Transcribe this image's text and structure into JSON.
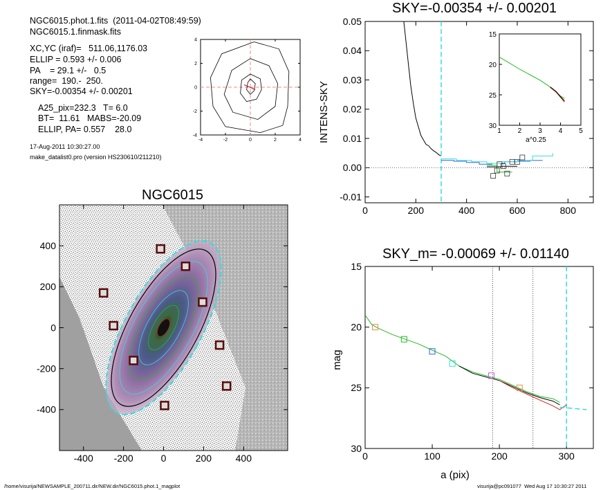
{
  "header": {
    "file_line": "NGC6015.phot.1.fits  (2011-04-02T08:49:59)",
    "mask_line": "NGC6015.1.finmask.fits",
    "lines": [
      "XC,YC (iraf)=   511.06,1176.03",
      "ELLIP = 0.593 +/- 0.006",
      "PA    = 29.1 +/-   0.5",
      "range=  190.-  250.",
      "SKY=-0.00354 +/- 0.00201"
    ],
    "params": [
      "A25_pix=232.3   T= 6.0",
      "BT=  11.61   MABS=-20.09",
      "ELLIP, PA= 0.557    28.0"
    ],
    "date_line": "17-Aug-2011 10:30:27.00",
    "program_line": "make_datalist0.pro (version HS230610/211210)"
  },
  "footer": {
    "left": "/home/visurija/NEWSAMPLE_200711.dir/NEW.dir/NGC6015.phot.1_magplot",
    "right": "visurija@pc091077  Wed Aug 17 10:30:27 2011"
  },
  "colors": {
    "black": "#000000",
    "green": "#22bb22",
    "red": "#cc2222",
    "blue": "#3366dd",
    "cyan": "#33dddd",
    "magenta": "#cc55cc",
    "orange": "#ee8844",
    "gray_bg": "#a0a0a0"
  },
  "chart_data": [
    {
      "id": "centroid_plot",
      "type": "line",
      "title": "",
      "xlim": [
        -4,
        4
      ],
      "ylim": [
        -4,
        4
      ],
      "x_ticks": [
        "-4",
        "-2",
        "0",
        "2",
        "4"
      ],
      "y_ticks": [
        "-4",
        "-2",
        "0",
        "2",
        "4"
      ],
      "contours": [
        [
          [
            0,
            0.7
          ],
          [
            0.4,
            0.3
          ],
          [
            0.3,
            -0.3
          ],
          [
            0,
            -0.6
          ],
          [
            -0.3,
            -0.2
          ],
          [
            -0.2,
            0.4
          ],
          [
            0,
            0.7
          ]
        ],
        [
          [
            0,
            1.1
          ],
          [
            0.8,
            0.7
          ],
          [
            0.9,
            -0.2
          ],
          [
            0.5,
            -1.0
          ],
          [
            -0.3,
            -1.2
          ],
          [
            -0.8,
            -0.5
          ],
          [
            -0.7,
            0.6
          ],
          [
            0,
            1.1
          ]
        ],
        [
          [
            0,
            2.4
          ],
          [
            1.5,
            1.8
          ],
          [
            2.2,
            0.3
          ],
          [
            2.0,
            -1.6
          ],
          [
            0.6,
            -2.7
          ],
          [
            -1.4,
            -2.1
          ],
          [
            -2.1,
            -0.6
          ],
          [
            -1.5,
            1.4
          ],
          [
            0,
            2.4
          ]
        ],
        [
          [
            0.3,
            3.8
          ],
          [
            2.3,
            3.2
          ],
          [
            3.1,
            1.3
          ],
          [
            3.0,
            -1.6
          ],
          [
            2.6,
            -3.2
          ],
          [
            0.8,
            -3.8
          ],
          [
            -2.0,
            -3.3
          ],
          [
            -3.0,
            -1.6
          ],
          [
            -3.2,
            0.8
          ],
          [
            -2.3,
            2.8
          ],
          [
            0.3,
            3.8
          ]
        ]
      ],
      "red_segment": [
        [
          -0.5,
          0.2
        ],
        [
          0.4,
          -0.2
        ]
      ]
    },
    {
      "id": "sky_plot",
      "type": "line",
      "title": "SKY=-0.00354 +/- 0.00201",
      "xlabel": "",
      "ylabel": "INTENS-SKY",
      "xlim": [
        0,
        900
      ],
      "ylim": [
        -0.012,
        0.05
      ],
      "x_ticks": [
        "0",
        "200",
        "400",
        "600",
        "800"
      ],
      "y_ticks": [
        "-0.01",
        "0.00",
        "0.01",
        "0.02",
        "0.03",
        "0.04",
        "0.05"
      ],
      "vline_cyan": 300,
      "series": [
        {
          "color": "black",
          "points": [
            [
              150,
              0.052
            ],
            [
              160,
              0.044
            ],
            [
              170,
              0.036
            ],
            [
              180,
              0.028
            ],
            [
              190,
              0.022
            ],
            [
              200,
              0.017
            ],
            [
              210,
              0.014
            ],
            [
              220,
              0.011
            ],
            [
              230,
              0.0095
            ],
            [
              240,
              0.008
            ],
            [
              250,
              0.0075
            ],
            [
              260,
              0.0065
            ],
            [
              270,
              0.0058
            ],
            [
              280,
              0.0052
            ],
            [
              290,
              0.0045
            ],
            [
              298,
              0.004
            ]
          ]
        },
        {
          "color": "blue",
          "points": [
            [
              300,
              0.0025
            ],
            [
              350,
              0.0025
            ],
            [
              350,
              0.0022
            ],
            [
              400,
              0.0022
            ],
            [
              400,
              0.0018
            ],
            [
              450,
              0.0018
            ],
            [
              450,
              0.0012
            ],
            [
              500,
              0.0012
            ],
            [
              500,
              0.0015
            ],
            [
              550,
              0.0015
            ],
            [
              550,
              0.002
            ],
            [
              600,
              0.002
            ],
            [
              600,
              0.0022
            ],
            [
              650,
              0.0022
            ],
            [
              650,
              0.0025
            ],
            [
              700,
              0.0025
            ]
          ]
        },
        {
          "color": "cyan",
          "points": [
            [
              300,
              0.003
            ],
            [
              360,
              0.003
            ],
            [
              360,
              0.0025
            ],
            [
              420,
              0.0025
            ],
            [
              420,
              0.002
            ],
            [
              480,
              0.002
            ],
            [
              480,
              0.0015
            ],
            [
              540,
              0.0015
            ],
            [
              540,
              0.002
            ],
            [
              600,
              0.002
            ],
            [
              600,
              0.0025
            ],
            [
              660,
              0.0025
            ],
            [
              660,
              0.004
            ],
            [
              740,
              0.004
            ],
            [
              740,
              0.005
            ]
          ]
        },
        {
          "color": "green",
          "points": [
            [
              480,
              0.0008
            ],
            [
              520,
              0.0008
            ],
            [
              520,
              -0.0015
            ],
            [
              580,
              -0.0015
            ]
          ]
        },
        {
          "color": "black",
          "points": [
            [
              480,
              0.0003
            ],
            [
              540,
              0.0003
            ],
            [
              540,
              0.0005
            ],
            [
              600,
              0.0005
            ]
          ]
        }
      ],
      "markers": [
        [
          505,
          -0.0028
        ],
        [
          520,
          -0.001
        ],
        [
          530,
          0.0012
        ],
        [
          545,
          0.0005
        ],
        [
          560,
          -0.002
        ],
        [
          580,
          0.002
        ],
        [
          600,
          0.002
        ],
        [
          620,
          0.0035
        ]
      ],
      "inset": {
        "xlabel": "a^0.25",
        "xlim": [
          1,
          5
        ],
        "ylim": [
          15,
          30
        ],
        "x_ticks": [
          "1",
          "2",
          "3",
          "4",
          "5"
        ],
        "y_ticks": [
          "15",
          "20",
          "25",
          "30"
        ],
        "series": [
          {
            "color": "green",
            "points": [
              [
                1.0,
                18.8
              ],
              [
                1.5,
                19.8
              ],
              [
                2.0,
                20.8
              ],
              [
                2.5,
                21.7
              ],
              [
                3.0,
                22.6
              ],
              [
                3.4,
                23.5
              ],
              [
                3.7,
                24.3
              ],
              [
                4.0,
                25.2
              ],
              [
                4.2,
                25.6
              ]
            ]
          },
          {
            "color": "red",
            "points": [
              [
                3.5,
                23.8
              ],
              [
                3.8,
                24.6
              ],
              [
                4.0,
                25.4
              ],
              [
                4.2,
                26.2
              ]
            ]
          },
          {
            "color": "black",
            "points": [
              [
                3.5,
                23.7
              ],
              [
                3.8,
                24.5
              ],
              [
                4.0,
                25.3
              ],
              [
                4.2,
                26.0
              ]
            ]
          }
        ]
      }
    },
    {
      "id": "image_plot",
      "type": "heatmap",
      "title": "NGC6015",
      "xlim": [
        -520,
        620
      ],
      "ylim": [
        -600,
        600
      ],
      "x_ticks": [
        "-400",
        "-200",
        "0",
        "200",
        "400"
      ],
      "y_ticks": [
        "-400",
        "-200",
        "0",
        "200",
        "400"
      ],
      "mask_boxes": [
        [
          -15,
          385
        ],
        [
          110,
          300
        ],
        [
          -300,
          170
        ],
        [
          195,
          125
        ],
        [
          -250,
          10
        ],
        [
          280,
          -85
        ],
        [
          -150,
          -160
        ],
        [
          315,
          -285
        ],
        [
          5,
          -380
        ]
      ]
    },
    {
      "id": "mag_plot",
      "type": "line",
      "title": "SKY_m= -0.00069 +/- 0.01140",
      "xlabel": "a (pix)",
      "ylabel": "mag",
      "xlim": [
        0,
        340
      ],
      "ylim": [
        30,
        15
      ],
      "x_ticks": [
        "0",
        "100",
        "200",
        "300"
      ],
      "y_ticks": [
        "15",
        "20",
        "25",
        "30"
      ],
      "vlines_dotted": [
        190,
        250
      ],
      "vline_cyan": 300,
      "series": [
        {
          "color": "green",
          "points": [
            [
              0,
              19.0
            ],
            [
              10,
              19.8
            ],
            [
              20,
              20.1
            ],
            [
              40,
              20.6
            ],
            [
              60,
              21.0
            ],
            [
              80,
              21.4
            ],
            [
              100,
              21.9
            ],
            [
              120,
              22.4
            ],
            [
              140,
              23.2
            ],
            [
              160,
              23.7
            ],
            [
              180,
              24.0
            ],
            [
              200,
              24.3
            ],
            [
              220,
              24.8
            ],
            [
              240,
              25.3
            ],
            [
              260,
              25.7
            ],
            [
              280,
              25.9
            ],
            [
              290,
              26.2
            ]
          ]
        },
        {
          "color": "black",
          "points": [
            [
              140,
              23.2
            ],
            [
              160,
              23.8
            ],
            [
              180,
              24.1
            ],
            [
              200,
              24.4
            ],
            [
              220,
              24.9
            ],
            [
              240,
              25.4
            ],
            [
              260,
              25.8
            ],
            [
              280,
              26.1
            ],
            [
              290,
              26.4
            ]
          ]
        },
        {
          "color": "red",
          "points": [
            [
              200,
              24.4
            ],
            [
              220,
              25.0
            ],
            [
              240,
              25.5
            ],
            [
              260,
              26.0
            ],
            [
              280,
              26.5
            ],
            [
              290,
              26.8
            ],
            [
              300,
              26.4
            ]
          ]
        }
      ],
      "cyan_tail": [
        [
          290,
          26.6
        ],
        [
          330,
          26.8
        ]
      ],
      "markers": [
        {
          "x": 15,
          "y": 20.0,
          "color": "orange"
        },
        {
          "x": 58,
          "y": 21.0,
          "color": "green"
        },
        {
          "x": 100,
          "y": 22.0,
          "color": "blue"
        },
        {
          "x": 130,
          "y": 23.0,
          "color": "cyan"
        },
        {
          "x": 188,
          "y": 24.0,
          "color": "magenta"
        },
        {
          "x": 230,
          "y": 25.0,
          "color": "orange"
        }
      ]
    }
  ]
}
